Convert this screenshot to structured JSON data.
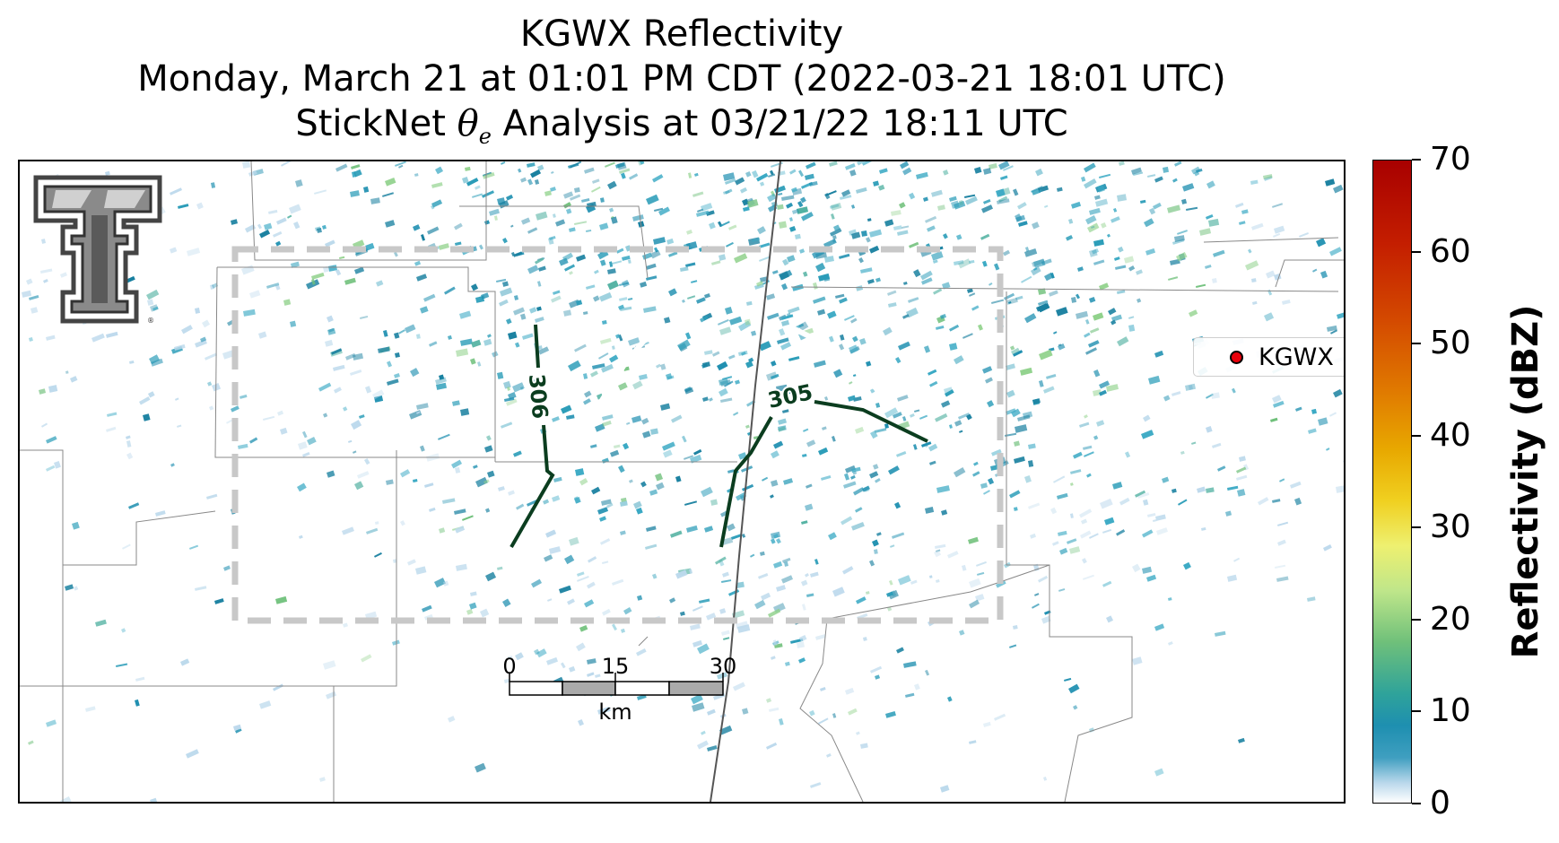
{
  "title": {
    "line1": "KGWX Reflectivity",
    "line2": "Monday, March 21 at 01:01 PM CDT (2022-03-21 18:01 UTC)",
    "line3_prefix": "StickNet ",
    "theta": "θ",
    "theta_sub": "e",
    "line3_suffix": " Analysis at 03/21/22 18:11 UTC"
  },
  "legend": {
    "label": "KGWX",
    "marker_color": "#e8000b"
  },
  "contours": [
    {
      "label": "306"
    },
    {
      "label": "305"
    }
  ],
  "contour_color": "#0b3d1f",
  "scale_bar": {
    "ticks": [
      "0",
      "15",
      "30"
    ],
    "unit": "km"
  },
  "colorbar": {
    "label": "Reflectivity (dBZ)",
    "ticks": [
      "0",
      "10",
      "20",
      "30",
      "40",
      "50",
      "60",
      "70"
    ],
    "min": 0,
    "max": 70,
    "colors": [
      "#ffffff",
      "#1e8fb0",
      "#6fc07a",
      "#eef070",
      "#e8a800",
      "#d44a00",
      "#a80000"
    ]
  },
  "analysis_box_color": "#c8c8c8",
  "logo_icon": "texas-tech-double-t-logo"
}
